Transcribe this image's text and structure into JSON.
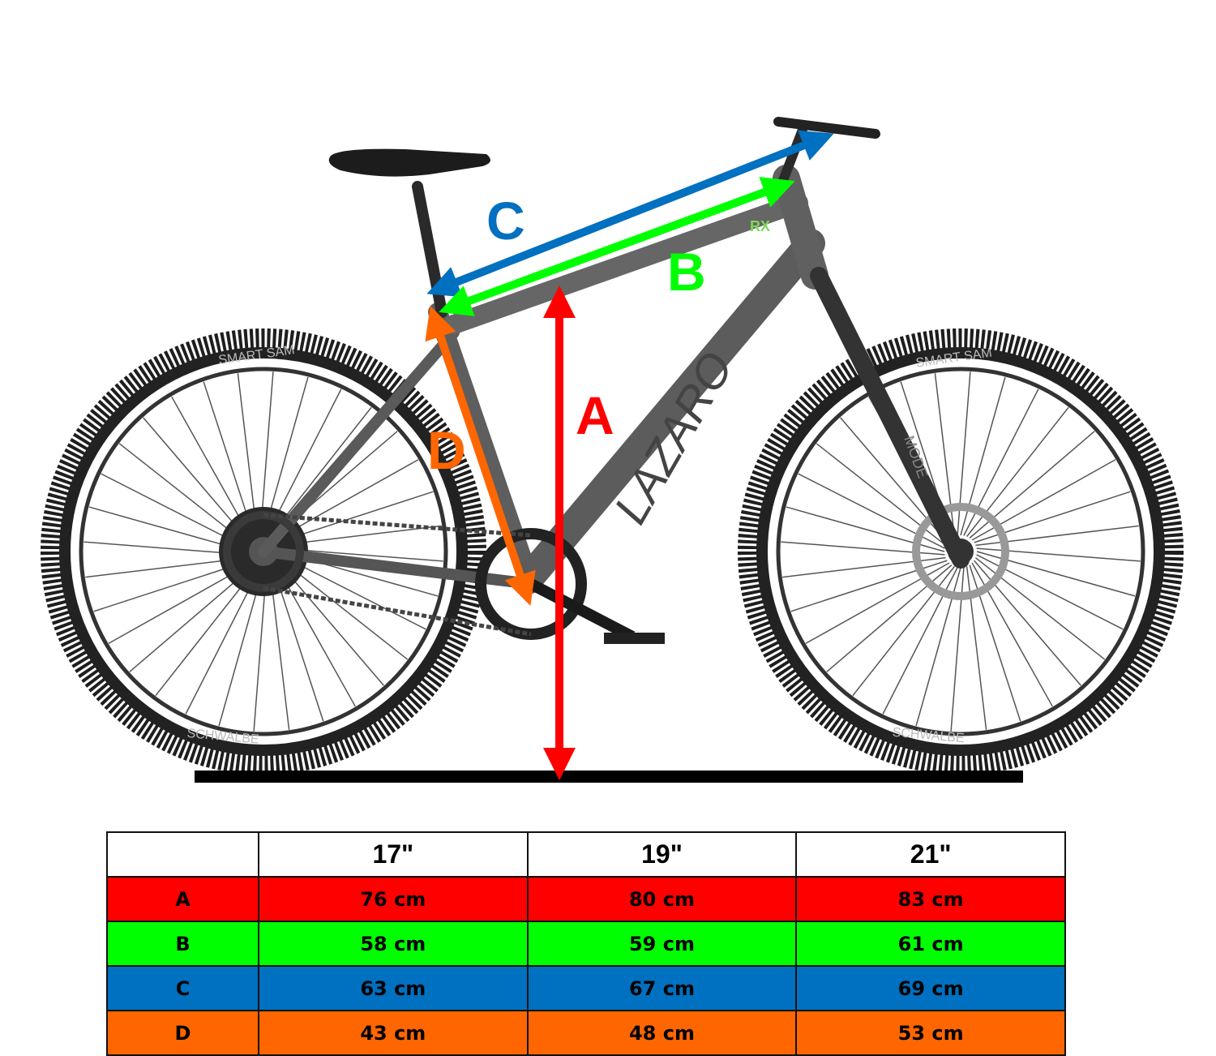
{
  "diagram": {
    "brand_logo": "LAZARO",
    "frame_badge": "RX",
    "tire_text": "SMART SAM",
    "tire_brand": "SCHWALBE",
    "fork_text": "MODE",
    "labels": {
      "A": "A",
      "B": "B",
      "C": "C",
      "D": "D"
    },
    "colors": {
      "A": "#ff0000",
      "B": "#00ff00",
      "C": "#0070c0",
      "D": "#ff6600"
    }
  },
  "size_table": {
    "headers": [
      "",
      "17\"",
      "19\"",
      "21\""
    ],
    "rows": [
      {
        "label": "A",
        "color": "#ff0000",
        "values": [
          "76 cm",
          "80 cm",
          "83 cm"
        ]
      },
      {
        "label": "B",
        "color": "#00ff00",
        "values": [
          "58 cm",
          "59 cm",
          "61 cm"
        ]
      },
      {
        "label": "C",
        "color": "#0070c0",
        "values": [
          "63 cm",
          "67 cm",
          "69 cm"
        ]
      },
      {
        "label": "D",
        "color": "#ff6600",
        "values": [
          "43 cm",
          "48 cm",
          "53 cm"
        ]
      }
    ]
  }
}
